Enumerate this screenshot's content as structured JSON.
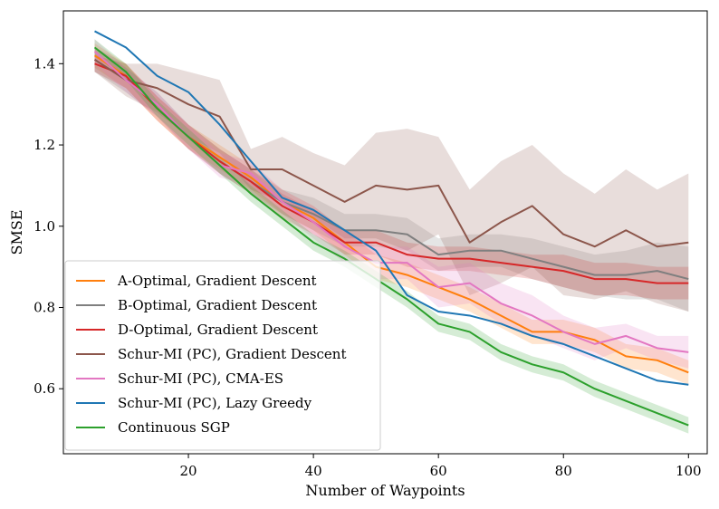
{
  "chart_data": {
    "type": "line",
    "title": "",
    "xlabel": "Number of Waypoints",
    "ylabel": "SMSE",
    "xlim": [
      0,
      103
    ],
    "ylim": [
      0.44,
      1.53
    ],
    "xticks": [
      20,
      40,
      60,
      80,
      100
    ],
    "yticks": [
      0.6,
      0.8,
      1.0,
      1.2,
      1.4
    ],
    "xtick_labels": [
      "20",
      "40",
      "60",
      "80",
      "100"
    ],
    "ytick_labels": [
      "0.6",
      "0.8",
      "1.0",
      "1.2",
      "1.4"
    ],
    "grid": false,
    "legend_position": "lower-left",
    "x": [
      5,
      10,
      15,
      20,
      25,
      30,
      35,
      40,
      45,
      50,
      55,
      60,
      65,
      70,
      75,
      80,
      85,
      90,
      95,
      100
    ],
    "series": [
      {
        "name": "A-Optimal, Gradient Descent",
        "color": "#ff7f0e",
        "values": [
          1.42,
          1.37,
          1.29,
          1.22,
          1.17,
          1.12,
          1.06,
          1.02,
          0.96,
          0.9,
          0.88,
          0.85,
          0.82,
          0.78,
          0.74,
          0.74,
          0.72,
          0.68,
          0.67,
          0.64
        ],
        "band": [
          0.03,
          0.03,
          0.03,
          0.03,
          0.03,
          0.03,
          0.03,
          0.03,
          0.03,
          0.03,
          0.03,
          0.03,
          0.03,
          0.03,
          0.03,
          0.03,
          0.03,
          0.03,
          0.03,
          0.03
        ]
      },
      {
        "name": "B-Optimal, Gradient Descent",
        "color": "#7f7f7f",
        "values": [
          1.41,
          1.36,
          1.3,
          1.22,
          1.16,
          1.11,
          1.06,
          1.03,
          0.99,
          0.99,
          0.98,
          0.93,
          0.94,
          0.94,
          0.92,
          0.9,
          0.88,
          0.88,
          0.89,
          0.87
        ],
        "band": [
          0.03,
          0.03,
          0.03,
          0.03,
          0.03,
          0.03,
          0.03,
          0.04,
          0.04,
          0.04,
          0.04,
          0.04,
          0.04,
          0.04,
          0.05,
          0.05,
          0.05,
          0.06,
          0.07,
          0.08
        ]
      },
      {
        "name": "D-Optimal, Gradient Descent",
        "color": "#d62728",
        "values": [
          1.4,
          1.37,
          1.29,
          1.22,
          1.16,
          1.11,
          1.05,
          1.01,
          0.96,
          0.96,
          0.93,
          0.92,
          0.92,
          0.91,
          0.9,
          0.89,
          0.87,
          0.87,
          0.86,
          0.86
        ],
        "band": [
          0.02,
          0.03,
          0.03,
          0.03,
          0.03,
          0.03,
          0.03,
          0.03,
          0.03,
          0.03,
          0.03,
          0.03,
          0.03,
          0.03,
          0.03,
          0.04,
          0.04,
          0.04,
          0.04,
          0.04
        ]
      },
      {
        "name": "Schur-MI (PC), Gradient Descent",
        "color": "#8c564b",
        "values": [
          1.41,
          1.36,
          1.34,
          1.3,
          1.27,
          1.14,
          1.14,
          1.1,
          1.06,
          1.1,
          1.09,
          1.1,
          0.96,
          1.01,
          1.05,
          0.98,
          0.95,
          0.99,
          0.95,
          0.96
        ],
        "band": [
          0.03,
          0.04,
          0.06,
          0.08,
          0.09,
          0.05,
          0.08,
          0.08,
          0.09,
          0.13,
          0.15,
          0.12,
          0.13,
          0.15,
          0.15,
          0.15,
          0.13,
          0.15,
          0.14,
          0.17
        ]
      },
      {
        "name": "Schur-MI (PC), CMA-ES",
        "color": "#e377c2",
        "values": [
          1.43,
          1.36,
          1.3,
          1.22,
          1.15,
          1.13,
          1.06,
          1.01,
          0.95,
          0.91,
          0.91,
          0.85,
          0.86,
          0.81,
          0.78,
          0.74,
          0.71,
          0.73,
          0.7,
          0.69
        ],
        "band": [
          0.03,
          0.03,
          0.03,
          0.03,
          0.03,
          0.03,
          0.03,
          0.04,
          0.04,
          0.04,
          0.04,
          0.05,
          0.05,
          0.05,
          0.05,
          0.04,
          0.04,
          0.03,
          0.03,
          0.04
        ]
      },
      {
        "name": "Schur-MI (PC), Lazy Greedy",
        "color": "#1f77b4",
        "values": [
          1.48,
          1.44,
          1.37,
          1.33,
          1.25,
          1.16,
          1.07,
          1.04,
          0.99,
          0.94,
          0.83,
          0.79,
          0.78,
          0.76,
          0.73,
          0.71,
          0.68,
          0.65,
          0.62,
          0.61
        ],
        "band": [
          0.0,
          0.0,
          0.0,
          0.0,
          0.0,
          0.0,
          0.0,
          0.0,
          0.0,
          0.0,
          0.0,
          0.0,
          0.0,
          0.0,
          0.0,
          0.0,
          0.0,
          0.0,
          0.0,
          0.0
        ]
      },
      {
        "name": "Continuous SGP",
        "color": "#2ca02c",
        "values": [
          1.44,
          1.38,
          1.29,
          1.22,
          1.15,
          1.08,
          1.02,
          0.96,
          0.92,
          0.87,
          0.82,
          0.76,
          0.74,
          0.69,
          0.66,
          0.64,
          0.6,
          0.57,
          0.54,
          0.51
        ],
        "band": [
          0.02,
          0.02,
          0.02,
          0.02,
          0.02,
          0.02,
          0.02,
          0.02,
          0.02,
          0.02,
          0.02,
          0.02,
          0.02,
          0.02,
          0.02,
          0.02,
          0.02,
          0.02,
          0.02,
          0.02
        ]
      }
    ]
  }
}
